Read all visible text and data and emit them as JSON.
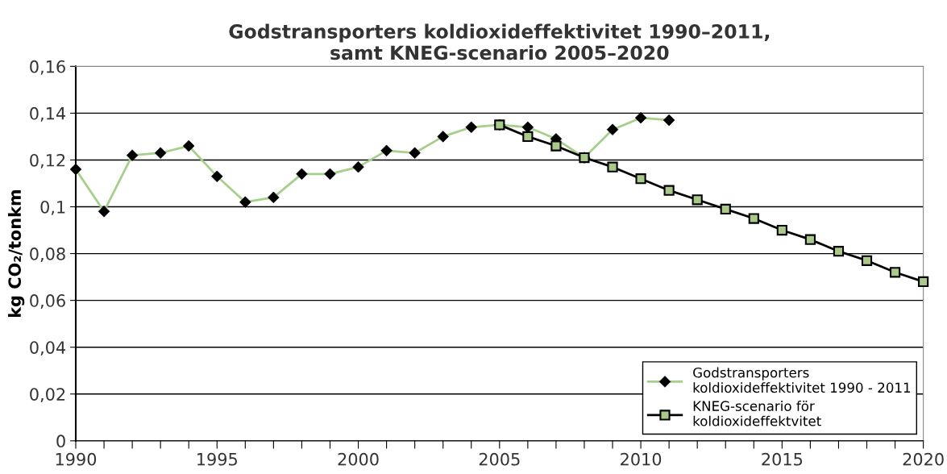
{
  "chart_data": {
    "type": "line",
    "title": "Godstransporters koldioxideffektivitet 1990–2011,\nsamt KNEG-scenario 2005–2020",
    "ylabel": "kg CO₂/tonkm",
    "series": [
      {
        "name": "Godstransporters\nkoldioxideffektivitet 1990 - 2011",
        "color": "#000000",
        "marker": "diamond",
        "x": [
          1990,
          1991,
          1992,
          1993,
          1994,
          1995,
          1996,
          1997,
          1998,
          1999,
          2000,
          2001,
          2002,
          2003,
          2004,
          2005,
          2006,
          2007,
          2008,
          2009,
          2010,
          2011
        ],
        "values": [
          0.116,
          0.098,
          0.122,
          0.123,
          0.126,
          0.113,
          0.102,
          0.104,
          0.114,
          0.114,
          0.117,
          0.124,
          0.123,
          0.13,
          0.134,
          0.135,
          0.134,
          0.129,
          0.121,
          0.133,
          0.138,
          0.137
        ]
      },
      {
        "name": "KNEG-scenario för\nkoldioxideffektvitet",
        "color": "#a9c98a",
        "marker": "square",
        "x": [
          2005,
          2006,
          2007,
          2008,
          2009,
          2010,
          2011,
          2012,
          2013,
          2014,
          2015,
          2016,
          2017,
          2018,
          2019,
          2020
        ],
        "values": [
          0.135,
          0.13,
          0.126,
          0.121,
          0.117,
          0.112,
          0.107,
          0.103,
          0.099,
          0.095,
          0.09,
          0.086,
          0.081,
          0.077,
          0.072,
          0.068
        ]
      }
    ],
    "xlim": [
      1990,
      2020
    ],
    "xticks": [
      1990,
      {
        "value": 1991,
        "label": null
      },
      {
        "value": 1992,
        "label": null
      },
      {
        "value": 1993,
        "label": null
      },
      {
        "value": 1994,
        "label": null
      },
      1995,
      {
        "value": 1996,
        "label": null
      },
      {
        "value": 1997,
        "label": null
      },
      {
        "value": 1998,
        "label": null
      },
      {
        "value": 1999,
        "label": null
      },
      2000,
      {
        "value": 2001,
        "label": null
      },
      {
        "value": 2002,
        "label": null
      },
      {
        "value": 2003,
        "label": null
      },
      {
        "value": 2004,
        "label": null
      },
      2005,
      {
        "value": 2006,
        "label": null
      },
      {
        "value": 2007,
        "label": null
      },
      {
        "value": 2008,
        "label": null
      },
      {
        "value": 2009,
        "label": null
      },
      2010,
      {
        "value": 2011,
        "label": null
      },
      {
        "value": 2012,
        "label": null
      },
      {
        "value": 2013,
        "label": null
      },
      {
        "value": 2014,
        "label": null
      },
      2015,
      {
        "value": 2016,
        "label": null
      },
      {
        "value": 2017,
        "label": null
      },
      {
        "value": 2018,
        "label": null
      },
      {
        "value": 2019,
        "label": null
      },
      2020
    ],
    "ylim": [
      0,
      0.16
    ],
    "yticks": [
      {
        "value": 0,
        "label": "0"
      },
      {
        "value": 0.02,
        "label": "0,02"
      },
      {
        "value": 0.04,
        "label": "0,04"
      },
      {
        "value": 0.06,
        "label": "0,06"
      },
      {
        "value": 0.08,
        "label": "0,08"
      },
      {
        "value": 0.1,
        "label": "0,1"
      },
      {
        "value": 0.12,
        "label": "0,12"
      },
      {
        "value": 0.14,
        "label": "0,14"
      },
      {
        "value": 0.16,
        "label": "0,16"
      }
    ],
    "grid": "y",
    "legend": "bottom right"
  }
}
